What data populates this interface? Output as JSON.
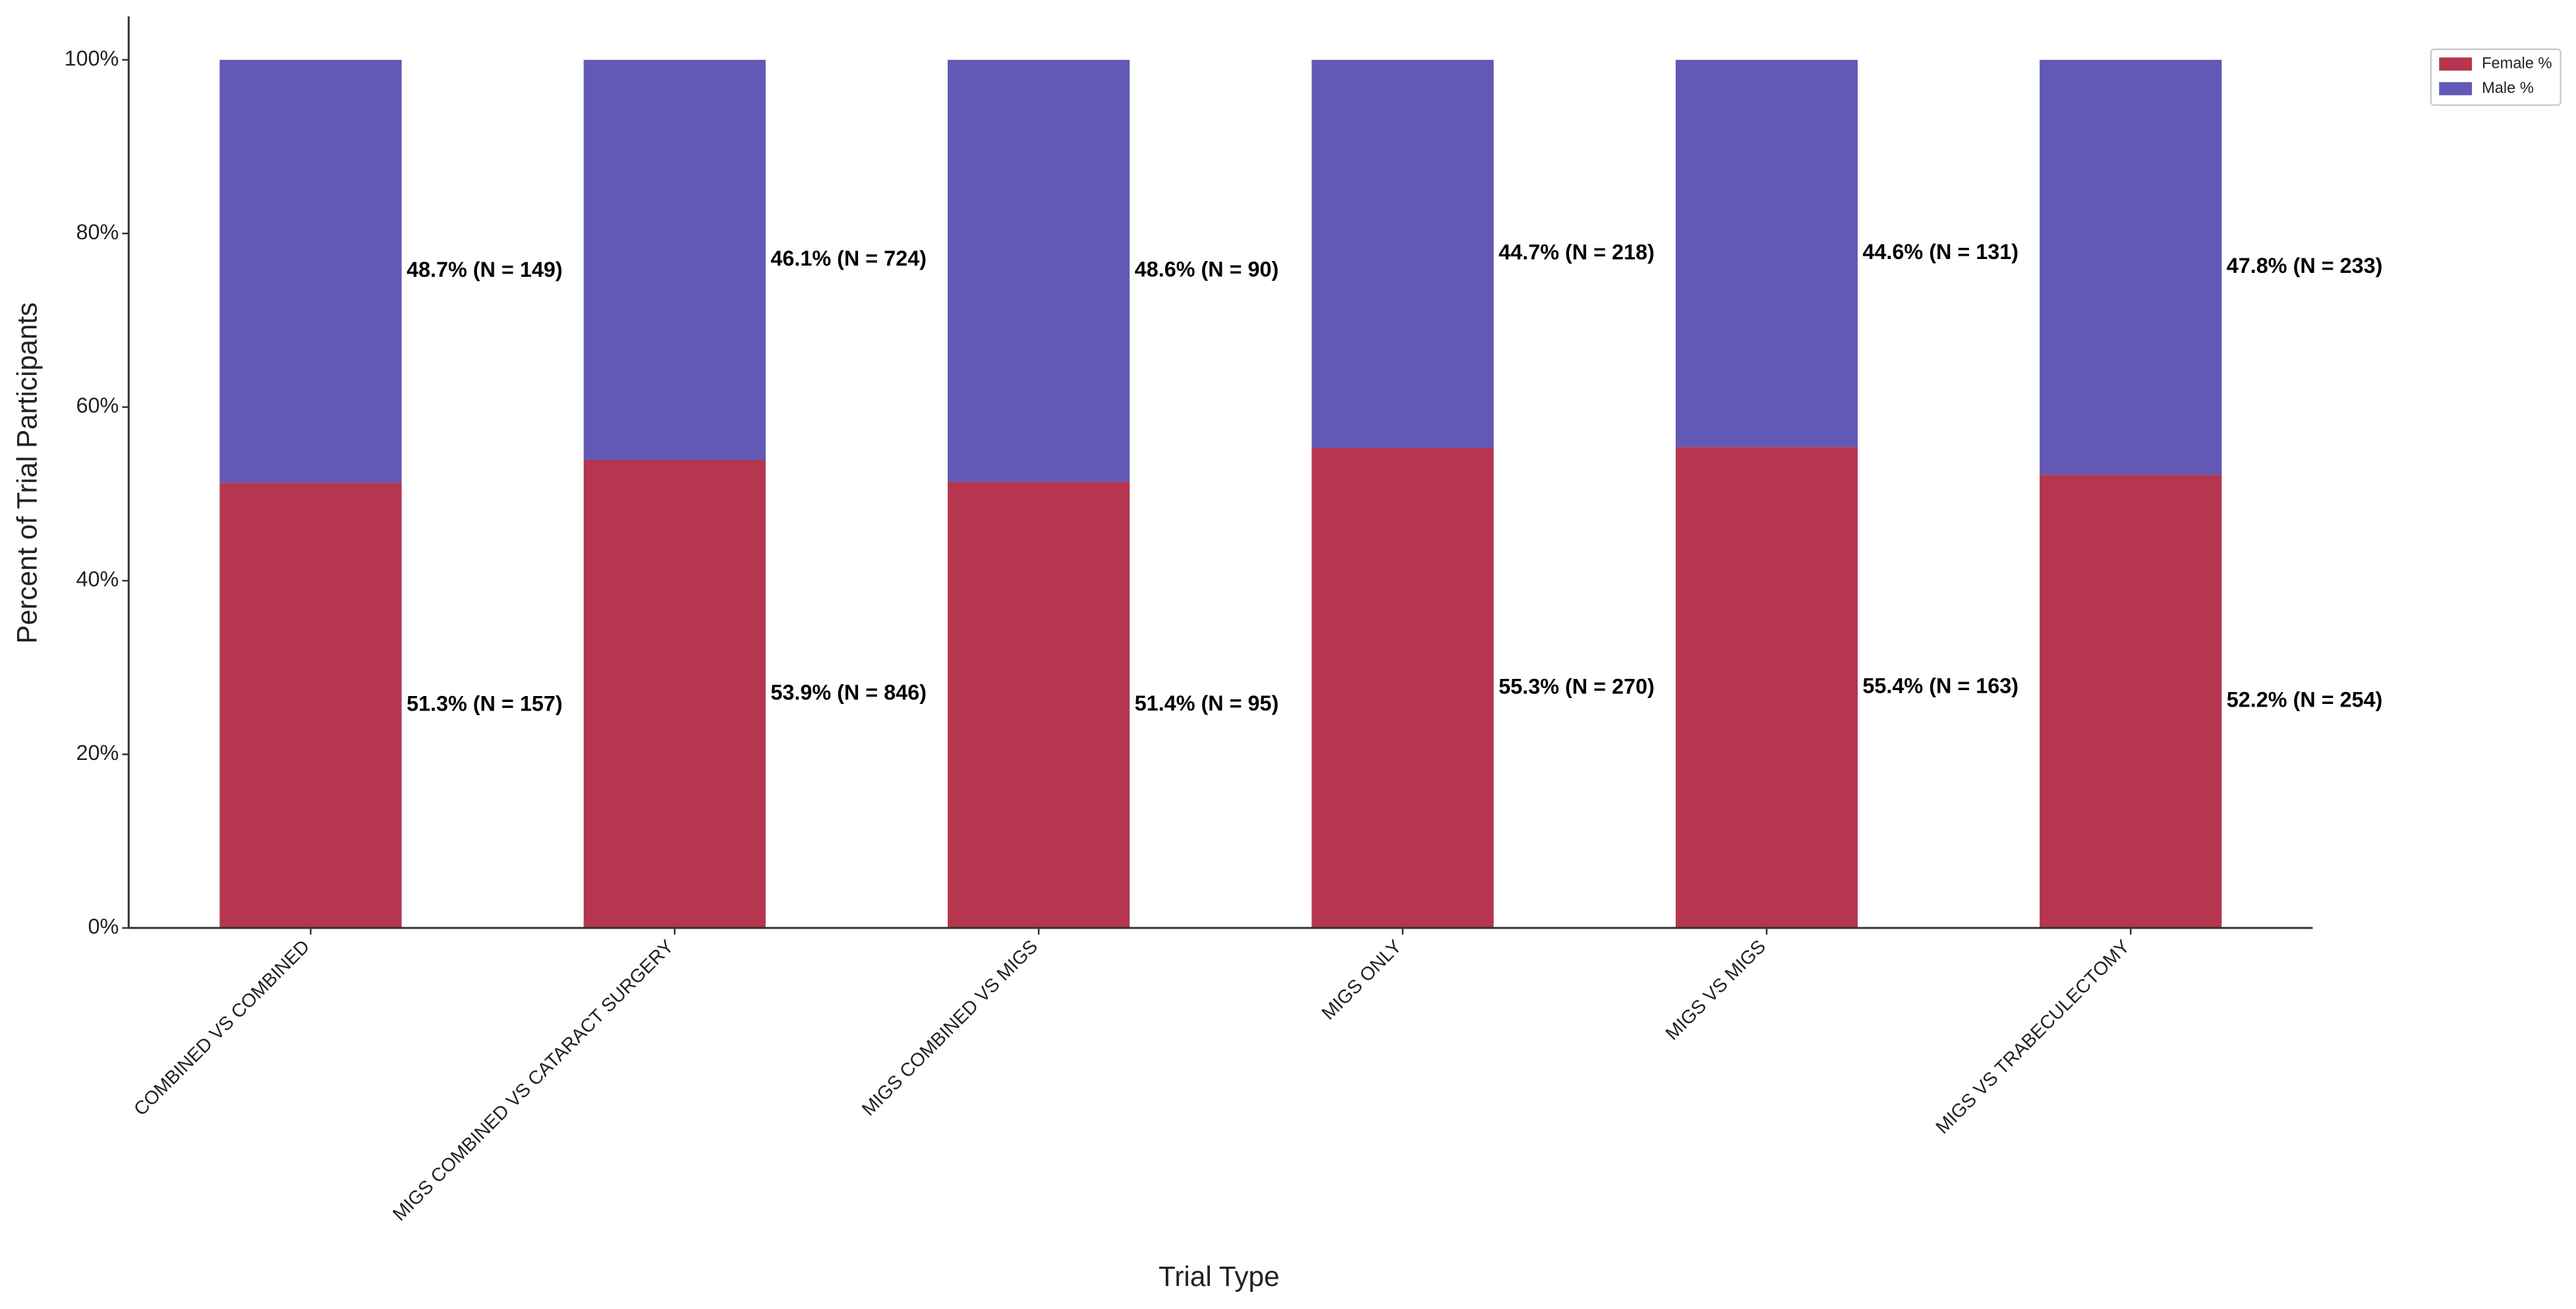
{
  "chart_data": {
    "type": "stacked_bar",
    "xlabel": "Trial Type",
    "ylabel": "Percent of Trial Participants",
    "categories": [
      "COMBINED VS COMBINED",
      "MIGS COMBINED VS CATARACT SURGERY",
      "MIGS COMBINED VS MIGS",
      "MIGS ONLY",
      "MIGS VS MIGS",
      "MIGS VS TRABECULECTOMY"
    ],
    "series": [
      {
        "name": "Female %",
        "color": "#b5364e",
        "values": [
          51.3,
          53.9,
          51.4,
          55.3,
          55.4,
          52.2
        ],
        "value_labels": [
          "51.3% (N = 157)",
          "53.9% (N = 846)",
          "51.4% (N = 95)",
          "55.3% (N = 270)",
          "55.4% (N = 163)",
          "52.2% (N = 254)"
        ]
      },
      {
        "name": "Male %",
        "color": "#6159b5",
        "values": [
          48.7,
          46.1,
          48.6,
          44.7,
          44.6,
          47.8
        ],
        "value_labels": [
          "48.7% (N = 149)",
          "46.1% (N = 724)",
          "48.6% (N = 90)",
          "44.7% (N = 218)",
          "44.6% (N = 131)",
          "47.8% (N = 233)"
        ]
      }
    ],
    "ylim": [
      0,
      105
    ],
    "yticks": [
      {
        "value": 0,
        "label": "0%"
      },
      {
        "value": 20,
        "label": "20%"
      },
      {
        "value": 40,
        "label": "40%"
      },
      {
        "value": 60,
        "label": "60%"
      },
      {
        "value": 80,
        "label": "80%"
      },
      {
        "value": 100,
        "label": "100%"
      }
    ],
    "grid": false,
    "legend": "upper right"
  }
}
